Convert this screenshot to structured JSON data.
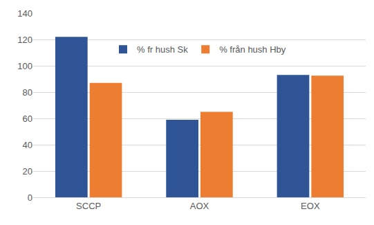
{
  "chart_data": {
    "type": "bar",
    "categories": [
      "SCCP",
      "AOX",
      "EOX"
    ],
    "series": [
      {
        "name": "% fr hush Sk",
        "color": "#2f5597",
        "values": [
          122,
          59,
          93
        ]
      },
      {
        "name": "% från hush Hby",
        "color": "#ed7d31",
        "values": [
          87,
          65,
          92.5
        ]
      }
    ],
    "ylim": [
      0,
      140
    ],
    "yticks": [
      0,
      20,
      40,
      60,
      80,
      100,
      120,
      140
    ],
    "grid": true,
    "legend": "top"
  }
}
